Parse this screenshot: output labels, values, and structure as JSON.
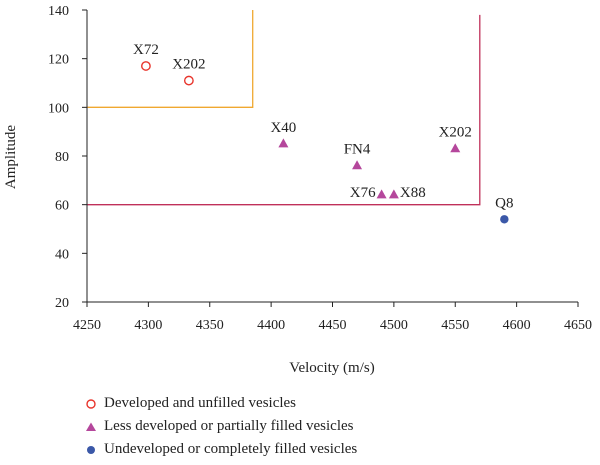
{
  "chart_data": {
    "type": "scatter",
    "xlabel": "Velocity (m/s)",
    "ylabel": "Amplitude",
    "xlim": [
      4250,
      4650
    ],
    "ylim": [
      20,
      140
    ],
    "xticks": [
      4250,
      4300,
      4350,
      4400,
      4450,
      4500,
      4550,
      4600,
      4650
    ],
    "yticks": [
      20,
      40,
      60,
      80,
      100,
      120,
      140
    ],
    "grid": false,
    "legend_position": "bottom",
    "series": [
      {
        "name": "Developed and unfilled vesicles",
        "marker": "open-circle",
        "color": "#e8342b",
        "points": [
          {
            "label": "X72",
            "x": 4298,
            "y": 117
          },
          {
            "label": "X202",
            "x": 4333,
            "y": 111
          }
        ]
      },
      {
        "name": "Less developed or partially filled vesicles",
        "marker": "triangle",
        "color": "#b5479c",
        "points": [
          {
            "label": "X40",
            "x": 4410,
            "y": 85
          },
          {
            "label": "FN4",
            "x": 4470,
            "y": 76
          },
          {
            "label": "X202",
            "x": 4550,
            "y": 83
          },
          {
            "label": "X76",
            "x": 4490,
            "y": 64
          },
          {
            "label": "X88",
            "x": 4500,
            "y": 64
          }
        ]
      },
      {
        "name": "Undeveloped or completely filled vesicles",
        "marker": "filled-circle",
        "color": "#3b58a8",
        "points": [
          {
            "label": "Q8",
            "x": 4590,
            "y": 54
          }
        ]
      }
    ],
    "regions": [
      {
        "color": "#f0a830",
        "x": [
          4250,
          4385
        ],
        "y": [
          100,
          140
        ]
      },
      {
        "color": "#c0305a",
        "x": [
          4250,
          4570
        ],
        "y": [
          60,
          138
        ]
      }
    ]
  }
}
